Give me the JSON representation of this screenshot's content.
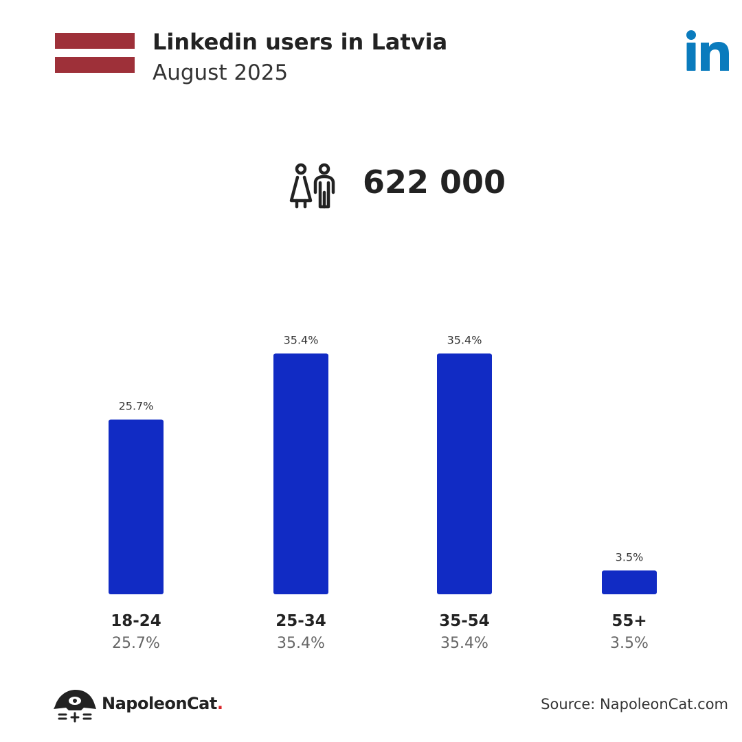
{
  "header": {
    "title": "Linkedin users in Latvia",
    "subtitle": "August 2025"
  },
  "flag": {
    "country": "Latvia",
    "colors": [
      "#9e3039",
      "#ffffff",
      "#9e3039"
    ]
  },
  "brand_logo": {
    "icon": "linkedin-icon",
    "text": "in",
    "color": "#0a7bbd"
  },
  "total": {
    "icon": "users-icon",
    "value": "622 000"
  },
  "chart_data": {
    "type": "bar",
    "categories": [
      "18-24",
      "25-34",
      "35-54",
      "55+"
    ],
    "values": [
      25.7,
      35.4,
      35.4,
      3.5
    ],
    "value_labels": [
      "25.7%",
      "35.4%",
      "35.4%",
      "3.5%"
    ],
    "unit": "%",
    "bar_color": "#112bc4",
    "grid": false,
    "legend": "none"
  },
  "footer": {
    "logo_name": "NapoleonCat",
    "logo_dot": ".",
    "logo_icon": "napoleoncat-icon",
    "source": "Source: NapoleonCat.com"
  }
}
